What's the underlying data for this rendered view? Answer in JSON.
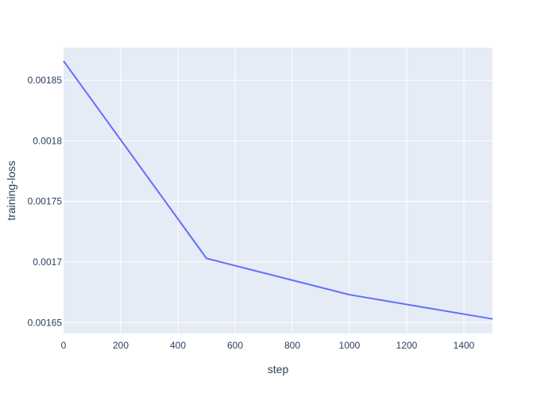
{
  "chart_data": {
    "type": "line",
    "title": "",
    "xlabel": "step",
    "ylabel": "training-loss",
    "xlim": [
      0,
      1500
    ],
    "ylim": [
      0.001641,
      0.001877
    ],
    "x_ticks": [
      0,
      200,
      400,
      600,
      800,
      1000,
      1200,
      1400
    ],
    "x_tick_labels": [
      "0",
      "200",
      "400",
      "600",
      "800",
      "1000",
      "1200",
      "1400"
    ],
    "y_ticks": [
      0.00165,
      0.0017,
      0.00175,
      0.0018,
      0.00185
    ],
    "y_tick_labels": [
      "0.00165",
      "0.0017",
      "0.00175",
      "0.0018",
      "0.00185"
    ],
    "grid": true,
    "legend": "none",
    "colors": {
      "plot_background": "#e5ecf6",
      "grid": "#ffffff",
      "line": "#636efa",
      "text": "#2a3f5f"
    },
    "series": [
      {
        "x": [
          0,
          500,
          1000,
          1500
        ],
        "y": [
          0.001866,
          0.001703,
          0.001673,
          0.001653
        ]
      }
    ]
  }
}
